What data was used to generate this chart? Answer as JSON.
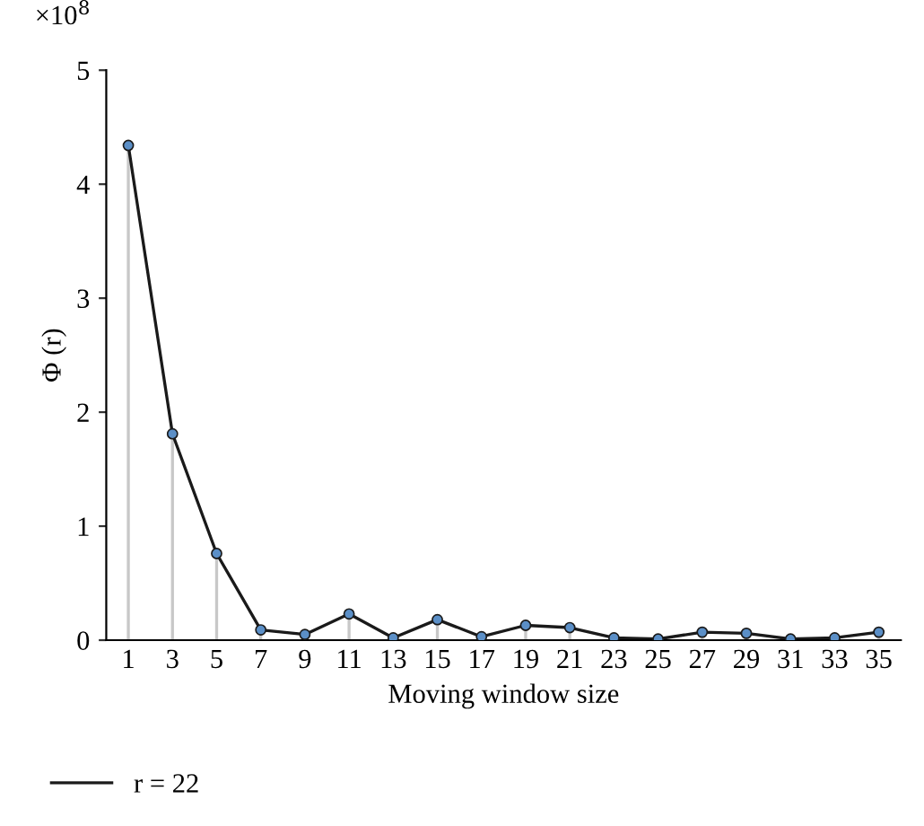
{
  "chart_data": {
    "type": "line",
    "xlabel": "Moving window size",
    "ylabel": "Φ (r)",
    "annotations": [
      "×10$^{8}$"
    ],
    "x": [
      1,
      3,
      5,
      7,
      9,
      11,
      13,
      15,
      17,
      19,
      21,
      23,
      25,
      27,
      29,
      31,
      33,
      35
    ],
    "series": [
      {
        "name": "r = 22",
        "color": "#1a1a1a",
        "values": [
          4.34,
          1.81,
          0.76,
          0.09,
          0.05,
          0.23,
          0.02,
          0.18,
          0.03,
          0.13,
          0.11,
          0.02,
          0.01,
          0.07,
          0.06,
          0.01,
          0.02,
          0.07
        ]
      },
      {
        "type": "lollipop",
        "color": "#5b8fc7",
        "marker": "circle",
        "values": [
          4.34,
          1.81,
          0.76,
          0.09,
          0.05,
          0.23,
          0.02,
          0.18,
          0.03,
          0.13,
          0.11,
          0.02,
          0.01,
          0.07,
          0.06,
          0.01,
          0.02,
          0.07
        ]
      }
    ],
    "xlim": [
      0,
      36
    ],
    "xticks": [
      1,
      3,
      5,
      7,
      9,
      11,
      13,
      15,
      17,
      19,
      21,
      23,
      25,
      27,
      29,
      31,
      33,
      35
    ],
    "ylim": [
      0,
      5
    ],
    "yticks": [
      0,
      1,
      2,
      3,
      4,
      5
    ],
    "legend": "bottom",
    "line_style": "solid"
  }
}
